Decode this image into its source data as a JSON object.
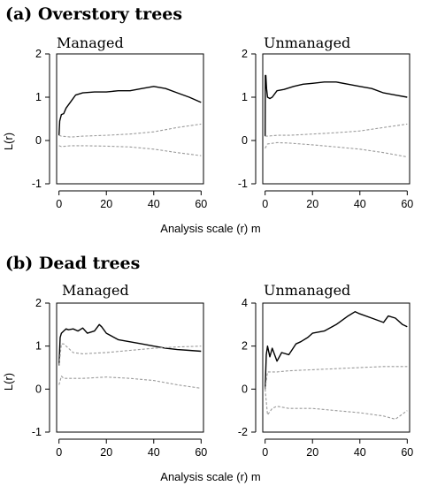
{
  "figure": {
    "section_a_title": "(a) Overstory trees",
    "section_b_title": "(b) Dead trees",
    "xlabel_a": "Analysis scale (r) m",
    "xlabel_b": "Analysis scale (r) m",
    "ylabel_a": "L(r)",
    "ylabel_b": "L(r)"
  },
  "colors": {
    "observed": "#000000",
    "envelope": "#9a9a9a",
    "axis": "#000000"
  },
  "chart_data": [
    {
      "type": "line",
      "title": "Managed",
      "section": "(a) Overstory trees",
      "xlabel": "Analysis scale (r) m",
      "ylabel": "L(r)",
      "xlim": [
        -1,
        61
      ],
      "ylim": [
        -1,
        2
      ],
      "xticks": [
        0,
        20,
        40,
        60
      ],
      "yticks": [
        -1,
        0,
        1,
        2
      ],
      "series": [
        {
          "role": "observed",
          "x": [
            0,
            0.3,
            1,
            2,
            3,
            5,
            7,
            10,
            15,
            20,
            25,
            30,
            35,
            40,
            45,
            50,
            55,
            60
          ],
          "y": [
            0.12,
            0.45,
            0.6,
            0.62,
            0.75,
            0.9,
            1.05,
            1.1,
            1.12,
            1.12,
            1.15,
            1.15,
            1.2,
            1.25,
            1.2,
            1.1,
            1.0,
            0.88
          ]
        },
        {
          "role": "upper",
          "x": [
            0,
            1,
            5,
            10,
            20,
            30,
            40,
            50,
            60
          ],
          "y": [
            0.12,
            0.1,
            0.08,
            0.1,
            0.12,
            0.15,
            0.2,
            0.3,
            0.38
          ]
        },
        {
          "role": "lower",
          "x": [
            0,
            1,
            5,
            10,
            20,
            30,
            40,
            50,
            60
          ],
          "y": [
            -0.12,
            -0.14,
            -0.12,
            -0.12,
            -0.13,
            -0.15,
            -0.2,
            -0.28,
            -0.35
          ]
        }
      ]
    },
    {
      "type": "line",
      "title": "Unmanaged",
      "section": "(a) Overstory trees",
      "xlabel": "Analysis scale (r) m",
      "xlim": [
        -1,
        61
      ],
      "ylim": [
        -1,
        2
      ],
      "xticks": [
        0,
        20,
        40,
        60
      ],
      "yticks": [
        -1,
        0,
        1,
        2
      ],
      "series": [
        {
          "role": "observed",
          "x": [
            0,
            0.1,
            0.3,
            0.6,
            1,
            2,
            3,
            5,
            8,
            12,
            16,
            20,
            25,
            30,
            35,
            40,
            45,
            50,
            55,
            60
          ],
          "y": [
            0.1,
            1.5,
            1.5,
            1.2,
            1.0,
            0.97,
            1.0,
            1.15,
            1.18,
            1.25,
            1.3,
            1.32,
            1.35,
            1.35,
            1.3,
            1.25,
            1.2,
            1.1,
            1.05,
            1.0
          ]
        },
        {
          "role": "upper",
          "x": [
            0,
            1,
            5,
            10,
            20,
            30,
            40,
            50,
            60
          ],
          "y": [
            0.1,
            0.1,
            0.12,
            0.12,
            0.15,
            0.18,
            0.22,
            0.3,
            0.38
          ]
        },
        {
          "role": "lower",
          "x": [
            0,
            1,
            5,
            10,
            20,
            30,
            40,
            50,
            60
          ],
          "y": [
            -0.18,
            -0.08,
            -0.05,
            -0.06,
            -0.1,
            -0.15,
            -0.2,
            -0.28,
            -0.38
          ]
        }
      ]
    },
    {
      "type": "line",
      "title": "Managed",
      "section": "(b) Dead trees",
      "xlabel": "Analysis scale (r) m",
      "ylabel": "L(r)",
      "xlim": [
        -1,
        61
      ],
      "ylim": [
        -1,
        2
      ],
      "xticks": [
        0,
        20,
        40,
        60
      ],
      "yticks": [
        -1,
        0,
        1,
        2
      ],
      "series": [
        {
          "role": "observed",
          "x": [
            0,
            0.5,
            1,
            2,
            3,
            4,
            6,
            8,
            10,
            12,
            15,
            17,
            18,
            20,
            25,
            30,
            35,
            40,
            45,
            50,
            55,
            60
          ],
          "y": [
            0.55,
            1.2,
            1.3,
            1.35,
            1.4,
            1.38,
            1.4,
            1.35,
            1.42,
            1.3,
            1.35,
            1.5,
            1.45,
            1.3,
            1.15,
            1.1,
            1.05,
            1.0,
            0.95,
            0.92,
            0.9,
            0.88
          ]
        },
        {
          "role": "upper",
          "x": [
            0,
            1,
            2,
            4,
            6,
            10,
            20,
            30,
            40,
            50,
            60
          ],
          "y": [
            0.55,
            1.05,
            1.05,
            0.95,
            0.85,
            0.82,
            0.85,
            0.9,
            0.95,
            0.98,
            1.0
          ]
        },
        {
          "role": "lower",
          "x": [
            0,
            1,
            2,
            5,
            10,
            20,
            30,
            40,
            50,
            60
          ],
          "y": [
            0.1,
            0.3,
            0.25,
            0.25,
            0.25,
            0.28,
            0.25,
            0.2,
            0.1,
            0.02
          ]
        }
      ]
    },
    {
      "type": "line",
      "title": "Unmanaged",
      "section": "(b) Dead trees",
      "xlabel": "Analysis scale (r) m",
      "xlim": [
        -1,
        61
      ],
      "ylim": [
        -2,
        4
      ],
      "xticks": [
        0,
        20,
        40,
        60
      ],
      "yticks": [
        -2,
        0,
        2,
        4
      ],
      "series": [
        {
          "role": "observed",
          "x": [
            0,
            0.5,
            1,
            2,
            3,
            5,
            7,
            10,
            13,
            15,
            18,
            20,
            25,
            30,
            35,
            38,
            40,
            45,
            50,
            52,
            55,
            58,
            60
          ],
          "y": [
            0.0,
            1.6,
            2.0,
            1.5,
            1.9,
            1.3,
            1.7,
            1.6,
            2.1,
            2.2,
            2.4,
            2.6,
            2.7,
            3.0,
            3.4,
            3.6,
            3.5,
            3.3,
            3.1,
            3.4,
            3.3,
            3.0,
            2.9
          ]
        },
        {
          "role": "upper",
          "x": [
            0,
            1,
            5,
            10,
            20,
            30,
            40,
            50,
            60
          ],
          "y": [
            0.0,
            0.8,
            0.8,
            0.85,
            0.9,
            0.95,
            1.0,
            1.05,
            1.05
          ]
        },
        {
          "role": "lower",
          "x": [
            0,
            1,
            3,
            5,
            10,
            20,
            30,
            40,
            50,
            55,
            60
          ],
          "y": [
            0.0,
            -1.2,
            -0.9,
            -0.8,
            -0.9,
            -0.9,
            -1.0,
            -1.1,
            -1.25,
            -1.4,
            -1.0
          ]
        }
      ]
    }
  ]
}
